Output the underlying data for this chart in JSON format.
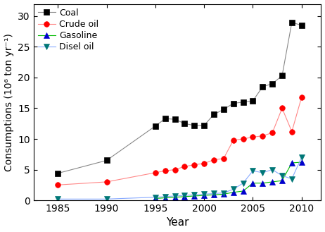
{
  "xlabel": "Year",
  "ylabel": "Consumptions (10⁶ ton yr⁻¹)",
  "xlim": [
    1982.5,
    2012
  ],
  "ylim": [
    0,
    32
  ],
  "yticks": [
    0,
    5,
    10,
    15,
    20,
    25,
    30
  ],
  "xticks": [
    1985,
    1990,
    1995,
    2000,
    2005,
    2010
  ],
  "coal": {
    "x": [
      1985,
      1990,
      1995,
      1996,
      1997,
      1998,
      1999,
      2000,
      2001,
      2002,
      2003,
      2004,
      2005,
      2006,
      2007,
      2008,
      2009,
      2010
    ],
    "y": [
      4.4,
      6.5,
      12.1,
      13.3,
      13.2,
      12.5,
      12.2,
      12.2,
      14.0,
      14.8,
      15.8,
      16.0,
      16.2,
      18.5,
      19.0,
      20.3,
      29.0,
      28.5
    ],
    "color": "#333333",
    "marker": "s",
    "label": "Coal"
  },
  "crude": {
    "x": [
      1985,
      1990,
      1995,
      1996,
      1997,
      1998,
      1999,
      2000,
      2001,
      2002,
      2003,
      2004,
      2005,
      2006,
      2007,
      2008,
      2009,
      2010
    ],
    "y": [
      2.5,
      3.0,
      4.5,
      4.8,
      5.0,
      5.5,
      5.8,
      6.0,
      6.6,
      6.8,
      9.8,
      10.0,
      10.3,
      10.5,
      11.0,
      15.0,
      11.2,
      16.8
    ],
    "color": "#ff0000",
    "marker": "o",
    "label": "Crude oil"
  },
  "gasoline": {
    "x": [
      1995,
      1996,
      1997,
      1998,
      1999,
      2000,
      2001,
      2002,
      2003,
      2004,
      2005,
      2006,
      2007,
      2008,
      2009,
      2010
    ],
    "y": [
      0.3,
      0.4,
      0.5,
      0.6,
      0.7,
      0.8,
      0.9,
      1.0,
      1.3,
      1.5,
      2.8,
      2.8,
      3.0,
      3.2,
      6.1,
      6.2
    ],
    "color": "#0000ff",
    "marker": "^",
    "label": "Gasoline"
  },
  "diesel": {
    "x": [
      1985,
      1990,
      1995,
      1996,
      1997,
      1998,
      1999,
      2000,
      2001,
      2002,
      2003,
      2004,
      2005,
      2006,
      2007,
      2008,
      2009,
      2010
    ],
    "y": [
      0.2,
      0.2,
      0.5,
      0.6,
      0.7,
      0.8,
      0.9,
      1.0,
      1.1,
      1.2,
      1.8,
      2.8,
      4.8,
      4.5,
      5.0,
      4.0,
      3.5,
      7.0
    ],
    "color": "#008080",
    "marker": "v",
    "label": "Disel oil"
  },
  "coal_line_color": "#888888",
  "crude_line_color": "#ff8888",
  "gasoline_line_color": "#00bb00",
  "diesel_line_color": "#88aaff"
}
